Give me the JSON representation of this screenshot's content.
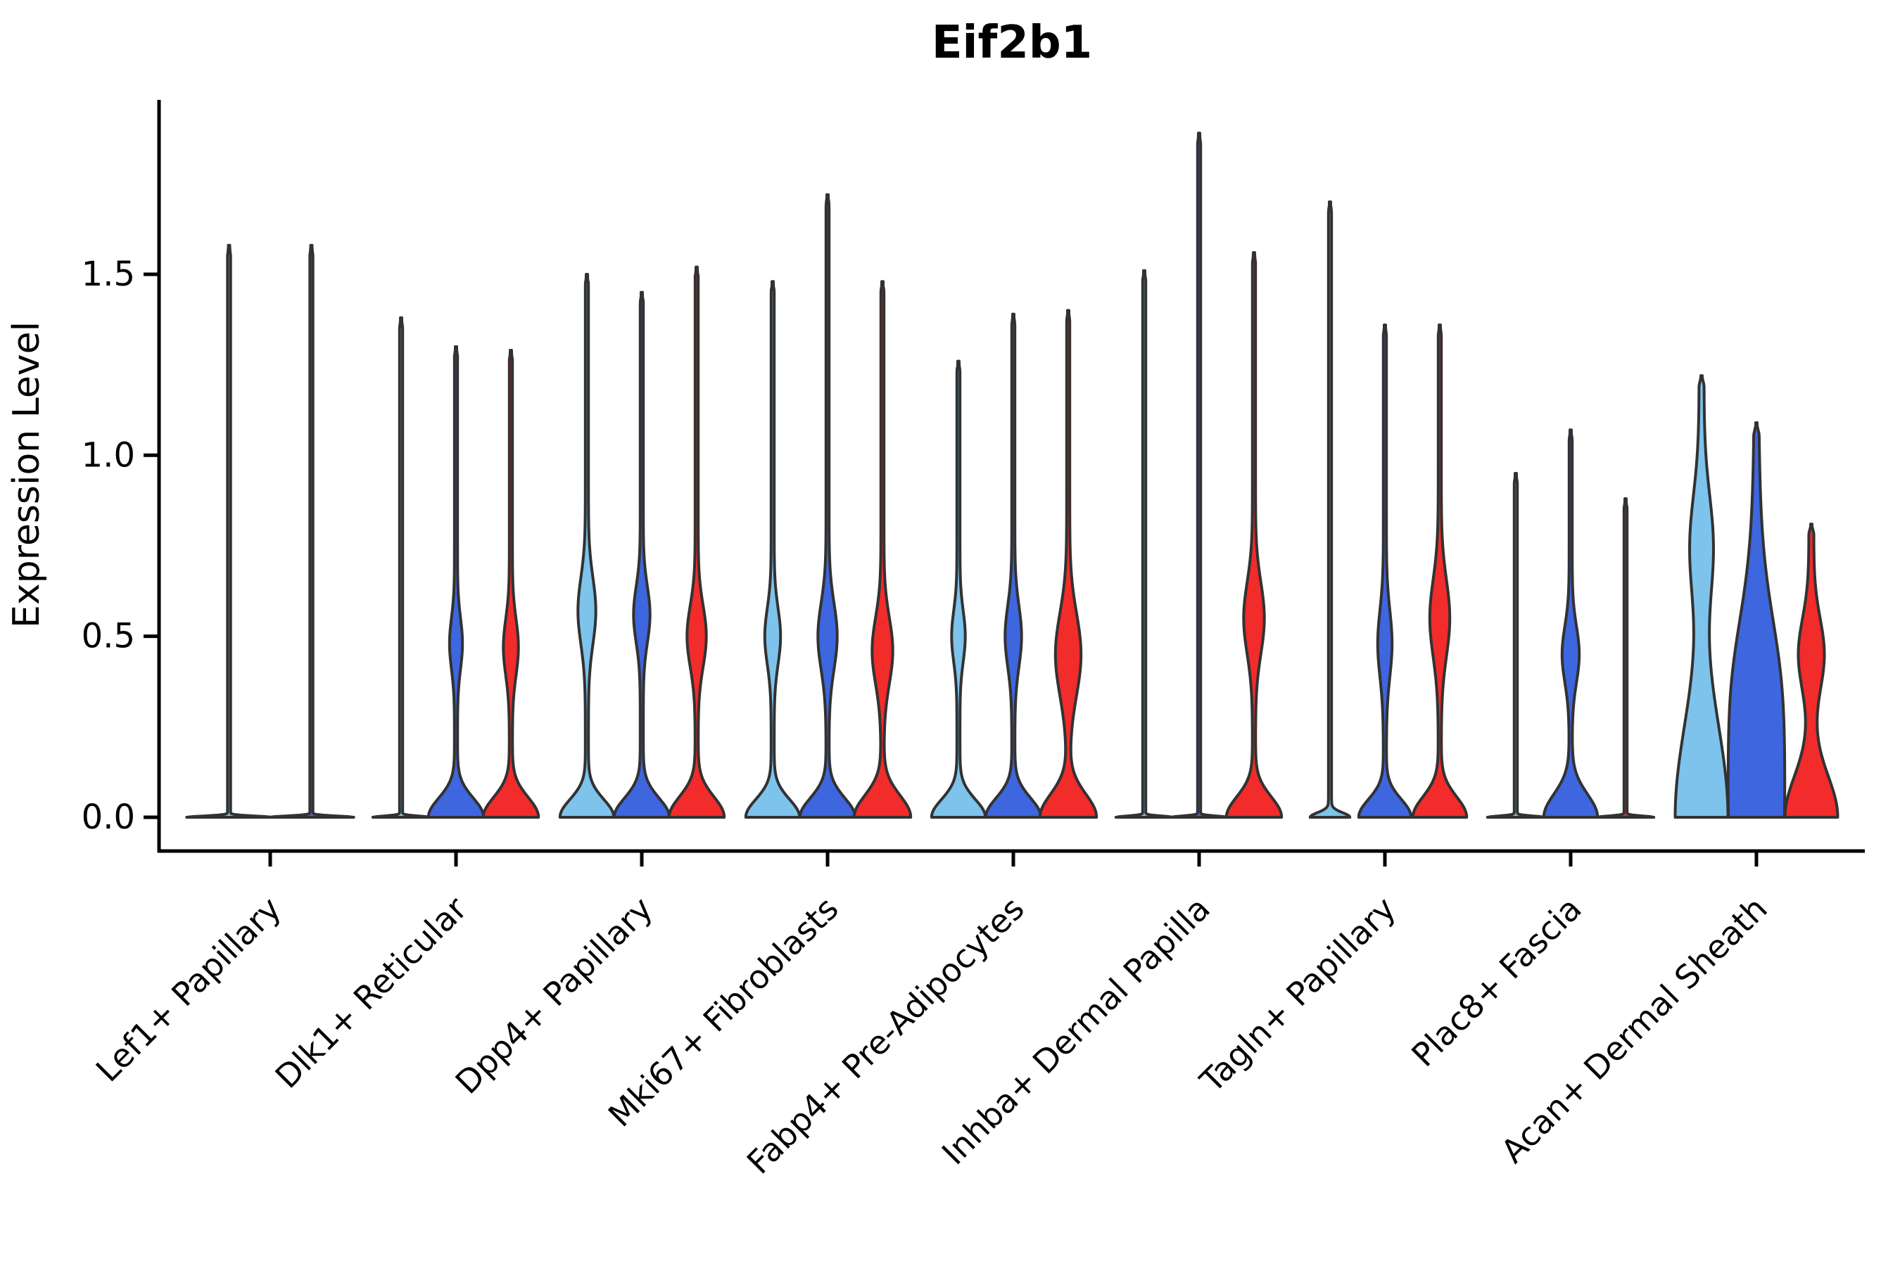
{
  "title": "Eif2b1",
  "y_axis": {
    "label": "Expression Level",
    "ticks": [
      {
        "value": 0.0,
        "label": "0.0"
      },
      {
        "value": 0.5,
        "label": "0.5"
      },
      {
        "value": 1.0,
        "label": "1.0"
      },
      {
        "value": 1.5,
        "label": "1.5"
      }
    ]
  },
  "colors": {
    "light-blue": "#7DC3EC",
    "blue": "#3E66DE",
    "red": "#F22B2B",
    "outline": "#323232",
    "axis": "#000000"
  },
  "chart_data": {
    "type": "violin",
    "title": "Eif2b1",
    "ylabel": "Expression Level",
    "ylim": [
      0,
      1.98
    ],
    "grid": false,
    "legend": "none",
    "splits": [
      "light-blue",
      "blue",
      "red"
    ],
    "categories": [
      "Lef1+ Papillary",
      "Dlk1+ Reticular",
      "Dpp4+ Papillary",
      "Mki67+ Fibroblasts",
      "Fabp4+ Pre-Adipocytes",
      "Inhba+ Dermal Papilla",
      "Tagln+ Papillary",
      "Plac8+ Fascia",
      "Acan+ Dermal Sheath"
    ],
    "groups": [
      {
        "category": "Lef1+ Papillary",
        "violins": [
          {
            "split": "light-blue",
            "pos": -0.75,
            "max": 1.58,
            "tip": 2.2,
            "base": {
              "a": 58,
              "s": 0.005
            },
            "bulge": null
          },
          {
            "split": "blue",
            "pos": 0.75,
            "max": 1.58,
            "tip": 2.2,
            "base": {
              "a": 58,
              "s": 0.005
            },
            "bulge": null
          }
        ]
      },
      {
        "category": "Dlk1+ Reticular",
        "violins": [
          {
            "split": "light-blue",
            "pos": -1,
            "max": 1.38,
            "tip": 2.2,
            "base": {
              "a": 38,
              "s": 0.005
            },
            "bulge": null
          },
          {
            "split": "blue",
            "pos": 0,
            "max": 1.3,
            "tip": 2.2,
            "base": {
              "a": 37,
              "s": 0.075
            },
            "bulge": {
              "a": 7.0,
              "c": 0.48,
              "s": 0.1
            }
          },
          {
            "split": "red",
            "pos": 1,
            "max": 1.29,
            "tip": 2.2,
            "base": {
              "a": 37,
              "s": 0.078
            },
            "bulge": {
              "a": 8.5,
              "c": 0.47,
              "s": 0.11
            }
          }
        ]
      },
      {
        "category": "Dpp4+ Papillary",
        "violins": [
          {
            "split": "light-blue",
            "pos": -1,
            "max": 1.5,
            "tip": 2.2,
            "base": {
              "a": 36,
              "s": 0.07
            },
            "bulge": {
              "a": 10.5,
              "c": 0.57,
              "s": 0.13
            }
          },
          {
            "split": "blue",
            "pos": 0,
            "max": 1.45,
            "tip": 2.2,
            "base": {
              "a": 37,
              "s": 0.075
            },
            "bulge": {
              "a": 9.5,
              "c": 0.56,
              "s": 0.11
            }
          },
          {
            "split": "red",
            "pos": 1,
            "max": 1.52,
            "tip": 2.2,
            "base": {
              "a": 37,
              "s": 0.08
            },
            "bulge": {
              "a": 11.5,
              "c": 0.5,
              "s": 0.12
            }
          }
        ]
      },
      {
        "category": "Mki67+ Fibroblasts",
        "violins": [
          {
            "split": "light-blue",
            "pos": -1,
            "max": 1.48,
            "tip": 2.2,
            "base": {
              "a": 36,
              "s": 0.07
            },
            "bulge": {
              "a": 9.0,
              "c": 0.5,
              "s": 0.11
            }
          },
          {
            "split": "blue",
            "pos": 0,
            "max": 1.72,
            "tip": 2.2,
            "base": {
              "a": 37,
              "s": 0.075
            },
            "bulge": {
              "a": 11.5,
              "c": 0.5,
              "s": 0.13
            }
          },
          {
            "split": "red",
            "pos": 1,
            "max": 1.48,
            "tip": 2.2,
            "base": {
              "a": 38,
              "s": 0.085
            },
            "bulge": {
              "a": 12.5,
              "c": 0.46,
              "s": 0.13
            }
          }
        ]
      },
      {
        "category": "Fabp4+ Pre-Adipocytes",
        "violins": [
          {
            "split": "light-blue",
            "pos": -1,
            "max": 1.26,
            "tip": 2.2,
            "base": {
              "a": 36,
              "s": 0.07
            },
            "bulge": {
              "a": 7.5,
              "c": 0.5,
              "s": 0.1
            }
          },
          {
            "split": "blue",
            "pos": 0,
            "max": 1.39,
            "tip": 2.2,
            "base": {
              "a": 37,
              "s": 0.075
            },
            "bulge": {
              "a": 9.5,
              "c": 0.5,
              "s": 0.12
            }
          },
          {
            "split": "red",
            "pos": 1,
            "max": 1.4,
            "tip": 2.2,
            "base": {
              "a": 38,
              "s": 0.09
            },
            "bulge": {
              "a": 16.0,
              "c": 0.45,
              "s": 0.16
            }
          }
        ]
      },
      {
        "category": "Inhba+ Dermal Papilla",
        "violins": [
          {
            "split": "light-blue",
            "pos": -1,
            "max": 1.51,
            "tip": 2.2,
            "base": {
              "a": 38,
              "s": 0.005
            },
            "bulge": null
          },
          {
            "split": "blue",
            "pos": 0,
            "max": 1.89,
            "tip": 2.2,
            "base": {
              "a": 38,
              "s": 0.005
            },
            "bulge": null
          },
          {
            "split": "red",
            "pos": 1,
            "max": 1.56,
            "tip": 2.2,
            "base": {
              "a": 37,
              "s": 0.08
            },
            "bulge": {
              "a": 12.5,
              "c": 0.55,
              "s": 0.14
            }
          }
        ]
      },
      {
        "category": "Tagln+ Papillary",
        "violins": [
          {
            "split": "light-blue",
            "pos": -1,
            "max": 1.7,
            "tip": 2.2,
            "base": {
              "a": 26,
              "s": 0.018
            },
            "bulge": null
          },
          {
            "split": "blue",
            "pos": 0,
            "max": 1.36,
            "tip": 2.2,
            "base": {
              "a": 35,
              "s": 0.07
            },
            "bulge": {
              "a": 8.0,
              "c": 0.48,
              "s": 0.13
            }
          },
          {
            "split": "red",
            "pos": 1,
            "max": 1.36,
            "tip": 2.2,
            "base": {
              "a": 36,
              "s": 0.08
            },
            "bulge": {
              "a": 12.0,
              "c": 0.55,
              "s": 0.15
            }
          }
        ]
      },
      {
        "category": "Plac8+ Fascia",
        "violins": [
          {
            "split": "light-blue",
            "pos": -1,
            "max": 0.95,
            "tip": 2.2,
            "base": {
              "a": 38,
              "s": 0.005
            },
            "bulge": null
          },
          {
            "split": "blue",
            "pos": 0,
            "max": 1.07,
            "tip": 2.2,
            "base": {
              "a": 36,
              "s": 0.09
            },
            "bulge": {
              "a": 10.0,
              "c": 0.45,
              "s": 0.11
            }
          },
          {
            "split": "red",
            "pos": 1,
            "max": 0.88,
            "tip": 2.2,
            "base": {
              "a": 38,
              "s": 0.005
            },
            "bulge": null
          }
        ]
      },
      {
        "category": "Acan+ Dermal Sheath",
        "violins": [
          {
            "split": "light-blue",
            "pos": -1,
            "max": 1.22,
            "tip": 3.5,
            "base": {
              "a": 34,
              "s": 0.36
            },
            "bulge": {
              "a": 13.0,
              "c": 0.75,
              "s": 0.2
            }
          },
          {
            "split": "blue",
            "pos": 0,
            "max": 1.09,
            "tip": 3.0,
            "base": {
              "a": 36,
              "s": 0.55
            },
            "bulge": {
              "a": 10.0,
              "c": 0.4,
              "s": 0.25
            }
          },
          {
            "split": "red",
            "pos": 1,
            "max": 0.81,
            "tip": 3.5,
            "base": {
              "a": 34,
              "s": 0.16
            },
            "bulge": {
              "a": 15.0,
              "c": 0.45,
              "s": 0.14
            }
          }
        ]
      }
    ]
  }
}
